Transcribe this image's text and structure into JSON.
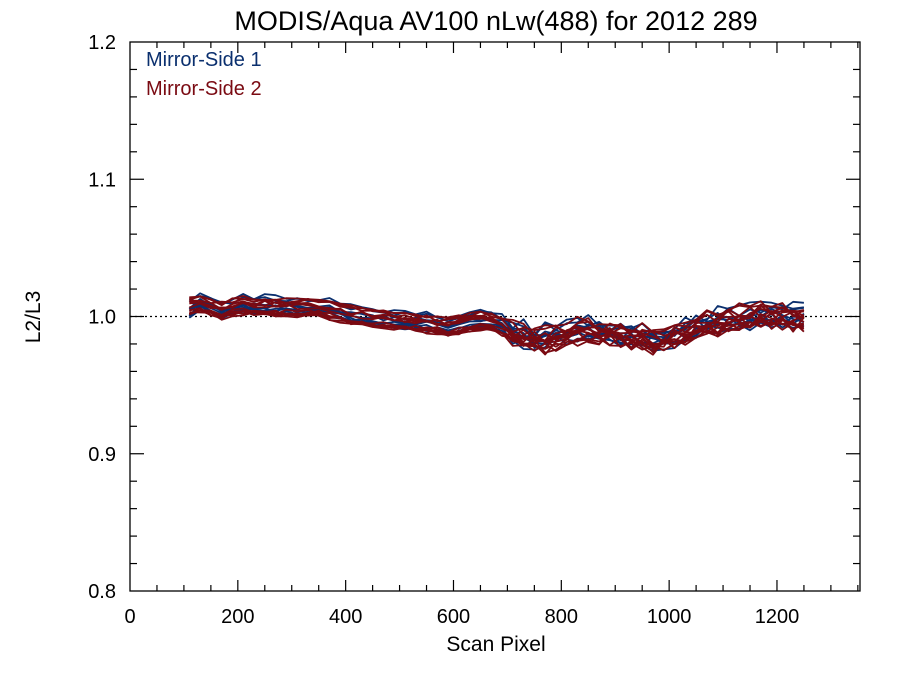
{
  "chart_data": {
    "type": "line",
    "title": "MODIS/Aqua AV100 nLw(488) for 2012 289",
    "xlabel": "Scan Pixel",
    "ylabel": "L2/L3",
    "xlim": [
      0,
      1354
    ],
    "ylim": [
      0.8,
      1.2
    ],
    "x_ticks": [
      "0",
      "200",
      "400",
      "600",
      "800",
      "1000",
      "1200"
    ],
    "y_ticks": [
      "0.8",
      "0.9",
      "1.0",
      "1.1",
      "1.2"
    ],
    "reference_line": {
      "y": 1.0,
      "style": "dotted"
    },
    "legend_position": "top-left",
    "colors": {
      "mirror_side_1": "#0a2f6e",
      "mirror_side_2": "#7a0a12"
    },
    "x": [
      110,
      130,
      150,
      170,
      190,
      210,
      230,
      250,
      270,
      290,
      310,
      330,
      350,
      370,
      390,
      410,
      430,
      450,
      470,
      490,
      510,
      530,
      550,
      570,
      590,
      610,
      630,
      650,
      670,
      690,
      710,
      730,
      750,
      770,
      790,
      810,
      830,
      850,
      870,
      890,
      910,
      930,
      950,
      970,
      990,
      1010,
      1030,
      1050,
      1070,
      1090,
      1110,
      1130,
      1150,
      1170,
      1190,
      1210,
      1230,
      1250
    ],
    "series": [
      {
        "name": "Mirror-Side 1",
        "values": [
          1.006,
          1.012,
          1.009,
          1.004,
          1.006,
          1.01,
          1.008,
          1.009,
          1.008,
          1.008,
          1.007,
          1.007,
          1.008,
          1.006,
          1.004,
          1.002,
          1.001,
          1.0,
          0.999,
          0.998,
          0.997,
          0.997,
          0.996,
          0.995,
          0.993,
          0.994,
          0.997,
          0.998,
          0.998,
          0.995,
          0.99,
          0.987,
          0.986,
          0.985,
          0.987,
          0.989,
          0.99,
          0.992,
          0.991,
          0.99,
          0.989,
          0.988,
          0.987,
          0.984,
          0.985,
          0.988,
          0.991,
          0.994,
          0.996,
          0.997,
          0.999,
          1.0,
          1.001,
          1.002,
          1.002,
          1.001,
          1.0,
          1.002
        ]
      },
      {
        "name": "Mirror-Side 2",
        "values": [
          1.008,
          1.01,
          1.007,
          1.005,
          1.007,
          1.008,
          1.007,
          1.008,
          1.007,
          1.007,
          1.006,
          1.007,
          1.007,
          1.005,
          1.003,
          1.001,
          1.0,
          0.999,
          0.998,
          0.997,
          0.996,
          0.996,
          0.995,
          0.994,
          0.993,
          0.994,
          0.996,
          0.997,
          0.997,
          0.993,
          0.988,
          0.985,
          0.984,
          0.983,
          0.985,
          0.987,
          0.989,
          0.99,
          0.989,
          0.988,
          0.987,
          0.986,
          0.985,
          0.982,
          0.983,
          0.986,
          0.989,
          0.992,
          0.995,
          0.996,
          0.998,
          1.0,
          1.0,
          1.001,
          1.001,
          1.0,
          0.999,
          0.999
        ]
      }
    ]
  }
}
